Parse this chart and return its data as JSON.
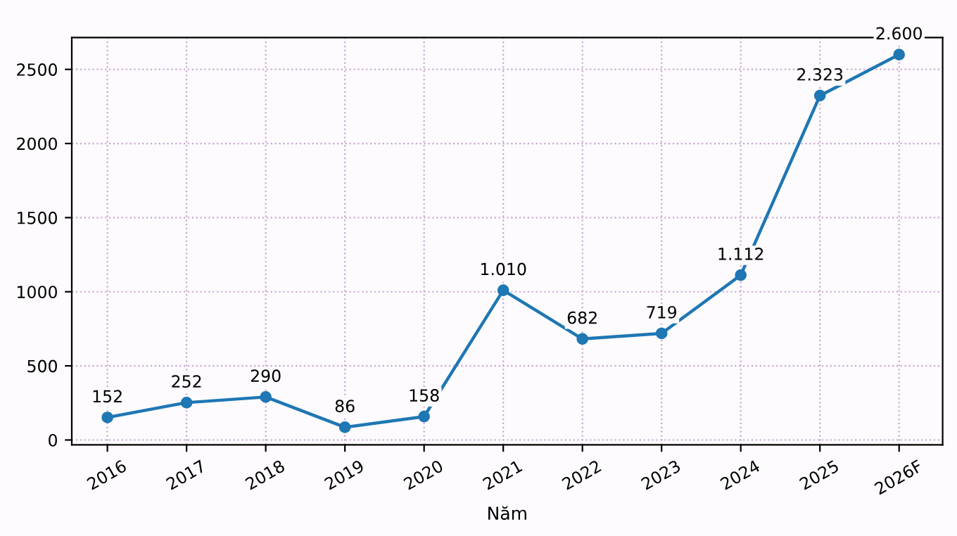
{
  "chart_data": {
    "type": "line",
    "xlabel": "Năm",
    "categories": [
      "2016",
      "2017",
      "2018",
      "2019",
      "2020",
      "2021",
      "2022",
      "2023",
      "2024",
      "2025",
      "2026F"
    ],
    "series": [
      {
        "color": "#1f77b4",
        "values": [
          152,
          252,
          290,
          86,
          158,
          1010,
          682,
          719,
          1112,
          2323,
          2600
        ],
        "value_labels": [
          "152",
          "252",
          "290",
          "86",
          "158",
          "1.010",
          "682",
          "719",
          "1.112",
          "2.323",
          "2.600"
        ]
      }
    ],
    "ylim": [
      -33,
      2715
    ],
    "yticks": [
      0,
      500,
      1000,
      1500,
      2000,
      2500
    ],
    "grid": true,
    "marker": "circle",
    "line_style": "solid",
    "legend": false
  }
}
